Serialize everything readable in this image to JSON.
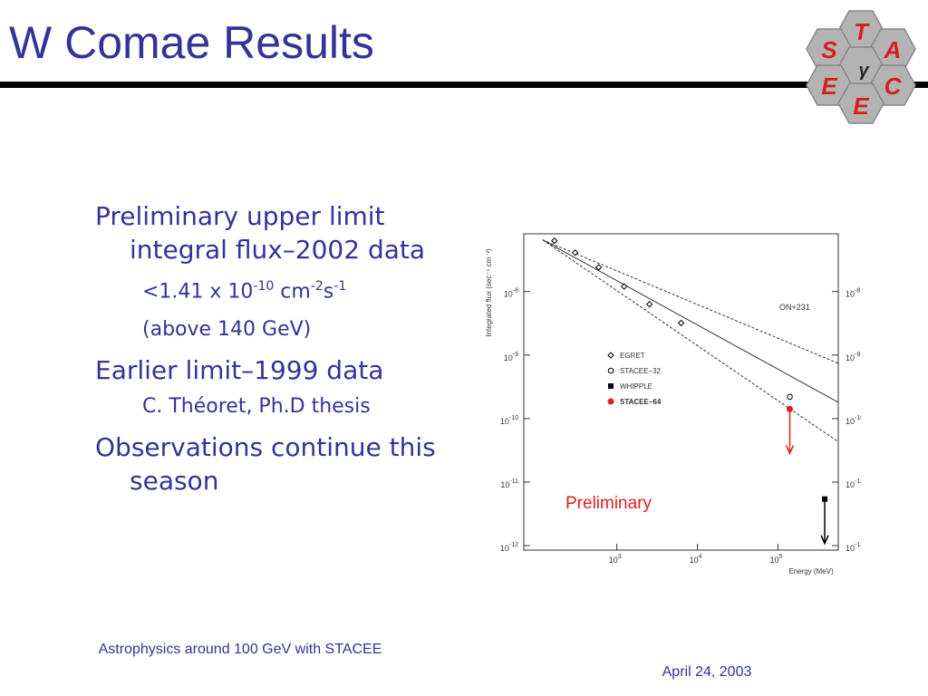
{
  "header": {
    "title": "W Comae Results"
  },
  "logo": {
    "letters": [
      "T",
      "S",
      "A",
      "γ",
      "E",
      "C",
      "E"
    ]
  },
  "bullets": [
    {
      "level": 1,
      "text": "Preliminary upper limit integral flux–2002 data"
    },
    {
      "level": 2,
      "runs": [
        {
          "text": "<1.41 x 10"
        },
        {
          "sup": "-10"
        },
        {
          "text": " cm"
        },
        {
          "sup": "-2"
        },
        {
          "text": "s"
        },
        {
          "sup": "-1"
        }
      ]
    },
    {
      "level": 2,
      "text": "(above 140 GeV)"
    },
    {
      "level": 1,
      "text": "Earlier limit–1999 data"
    },
    {
      "level": 2,
      "text": "C. Théoret, Ph.D thesis"
    },
    {
      "level": 1,
      "text": "Observations continue this season"
    }
  ],
  "chart_data": {
    "type": "scatter",
    "xlabel": "Energy (MeV)",
    "ylabel": "Integrated flux (sec⁻¹ cm⁻²)",
    "log_x": true,
    "log_y": true,
    "xlim": [
      70,
      560000
    ],
    "ylim": [
      8.5e-13,
      8.1e-08
    ],
    "xticks": [
      {
        "value": 1000,
        "label": "10",
        "exp": "3"
      },
      {
        "value": 10000,
        "label": "10",
        "exp": "4"
      },
      {
        "value": 100000,
        "label": "10",
        "exp": "5"
      }
    ],
    "yticks": [
      {
        "value": 1e-08,
        "label": "10",
        "exp": "-8"
      },
      {
        "value": 1e-09,
        "label": "10",
        "exp": "-9"
      },
      {
        "value": 1e-10,
        "label": "10",
        "exp": "-10"
      },
      {
        "value": 1e-11,
        "label": "10",
        "exp": "-11"
      },
      {
        "value": 1e-12,
        "label": "10",
        "exp": "-12"
      }
    ],
    "annotations": [
      "ON+231",
      "Preliminary"
    ],
    "series": [
      {
        "name": "EGRET",
        "color": "#000000",
        "marker": "diamond",
        "x": [
          168,
          304,
          596,
          1230,
          2540,
          6270
        ],
        "values": [
          6.3e-08,
          4.1e-08,
          2.4e-08,
          1.2e-08,
          6.3e-09,
          3.2e-09
        ],
        "upper_limit": false
      },
      {
        "name": "STACEE−32",
        "color": "#000000",
        "marker": "open-circle",
        "x": [
          140000
        ],
        "values": [
          2.2e-10
        ],
        "upper_limit": false
      },
      {
        "name": "WHIPPLE",
        "color": "#000000",
        "marker": "square",
        "x": [
          380000
        ],
        "values": [
          5.4e-12
        ],
        "upper_limit": true
      },
      {
        "name": "STACEE−64",
        "color": "#e02020",
        "marker": "circle",
        "x": [
          140000
        ],
        "values": [
          1.41e-10
        ],
        "upper_limit": true
      }
    ],
    "lines": [
      {
        "style": "solid",
        "x": [
          120,
          560000
        ],
        "values": [
          6.5e-08,
          1.8e-10
        ]
      },
      {
        "style": "dashed",
        "x": [
          120,
          560000
        ],
        "values": [
          6.5e-08,
          7.4e-10
        ]
      },
      {
        "style": "dashed",
        "x": [
          120,
          560000
        ],
        "values": [
          6.5e-08,
          4.3e-11
        ]
      }
    ]
  },
  "footer": {
    "left": "Astrophysics around 100 GeV with STACEE",
    "right": "April 24, 2003"
  }
}
